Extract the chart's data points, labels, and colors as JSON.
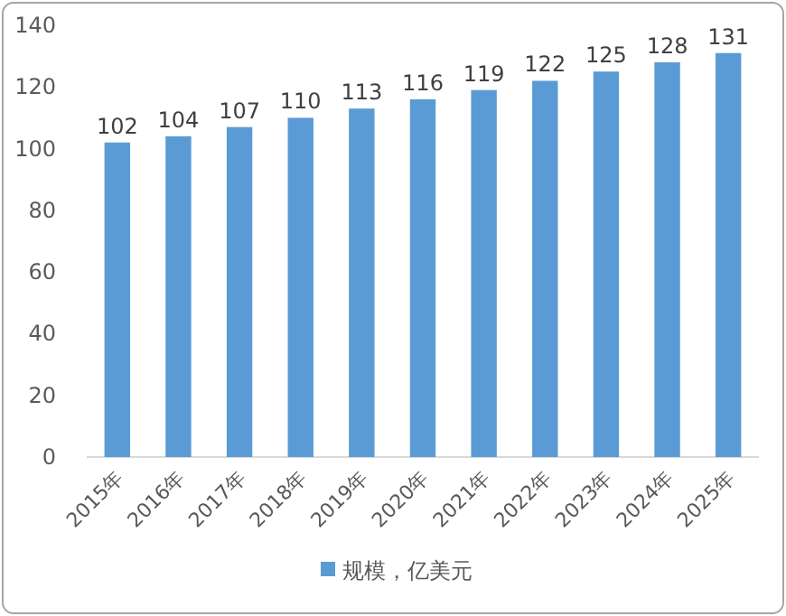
{
  "chart_data": {
    "type": "bar",
    "categories": [
      "2015年",
      "2016年",
      "2017年",
      "2018年",
      "2019年",
      "2020年",
      "2021年",
      "2022年",
      "2023年",
      "2024年",
      "2025年"
    ],
    "series": [
      {
        "name": "规模，亿美元",
        "color": "#5b9bd5",
        "values": [
          102,
          104,
          107,
          110,
          113,
          116,
          119,
          122,
          125,
          128,
          131
        ]
      }
    ],
    "ylim": [
      0,
      140
    ],
    "yticks": [
      0,
      20,
      40,
      60,
      80,
      100,
      120,
      140
    ],
    "data_labels": true,
    "legend": "bottom"
  }
}
